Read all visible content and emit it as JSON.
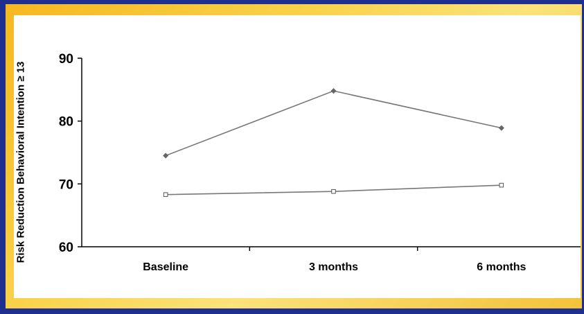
{
  "chart_data": {
    "type": "line",
    "ylabel": "Risk Reduction Behavioral Intention ≥ 13",
    "xlabel": "",
    "categories": [
      "Baseline",
      "3 months",
      "6 months"
    ],
    "ylim": [
      60,
      90
    ],
    "yticks": [
      "60",
      "70",
      "80",
      "90"
    ],
    "series": [
      {
        "values": [
          74.5,
          84.8,
          78.9
        ],
        "marker": "diamond",
        "color": "#777777"
      },
      {
        "values": [
          68.3,
          68.8,
          69.8
        ],
        "marker": "square",
        "color": "#777777"
      }
    ],
    "grid": false,
    "legend": "none"
  }
}
